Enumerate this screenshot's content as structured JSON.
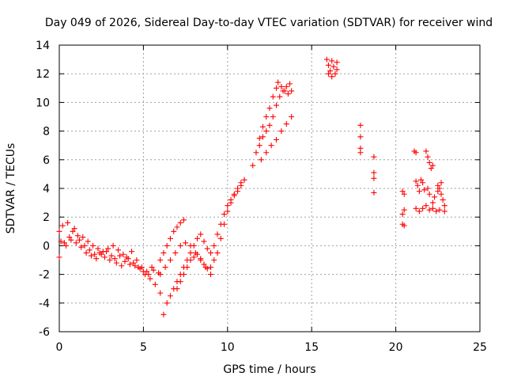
{
  "chart_data": {
    "type": "scatter",
    "title": "Day 049 of 2026, Sidereal Day-to-day VTEC variation (SDTVAR) for receiver wind",
    "xlabel": "GPS time / hours",
    "ylabel": "SDTVAR / TECUs",
    "xlim": [
      0,
      25
    ],
    "ylim": [
      -6,
      14
    ],
    "xticks": [
      0,
      5,
      10,
      15,
      20,
      25
    ],
    "yticks": [
      -6,
      -4,
      -2,
      0,
      2,
      4,
      6,
      8,
      10,
      12,
      14
    ],
    "grid": true,
    "marker": "+",
    "color": "#ff0000",
    "series": [
      {
        "name": "track-a",
        "points": [
          [
            0.0,
            -0.8
          ],
          [
            0.3,
            0.2
          ],
          [
            0.6,
            0.6
          ],
          [
            0.9,
            1.2
          ],
          [
            1.2,
            0.4
          ],
          [
            1.5,
            0.0
          ],
          [
            1.8,
            -0.3
          ],
          [
            2.1,
            -0.6
          ],
          [
            2.4,
            -0.5
          ],
          [
            2.7,
            -0.8
          ],
          [
            3.0,
            -1.0
          ],
          [
            3.3,
            -0.9
          ],
          [
            3.6,
            -0.7
          ],
          [
            3.9,
            -1.1
          ],
          [
            4.2,
            -1.3
          ],
          [
            4.5,
            -1.4
          ],
          [
            4.8,
            -1.6
          ],
          [
            5.1,
            -2.0
          ],
          [
            5.4,
            -2.3
          ],
          [
            5.7,
            -2.7
          ],
          [
            6.0,
            -3.3
          ]
        ]
      },
      {
        "name": "track-b",
        "points": [
          [
            0.0,
            1.0
          ],
          [
            0.2,
            1.4
          ],
          [
            0.5,
            1.6
          ],
          [
            0.8,
            1.0
          ],
          [
            1.1,
            0.7
          ],
          [
            1.4,
            0.6
          ],
          [
            1.7,
            0.3
          ],
          [
            2.0,
            0.0
          ],
          [
            2.3,
            -0.2
          ],
          [
            2.6,
            -0.4
          ],
          [
            2.9,
            -0.2
          ],
          [
            3.2,
            0.0
          ],
          [
            3.5,
            -0.3
          ],
          [
            3.8,
            -0.6
          ],
          [
            4.1,
            -0.9
          ],
          [
            4.4,
            -1.2
          ],
          [
            4.7,
            -1.5
          ],
          [
            5.0,
            -1.8
          ],
          [
            5.3,
            -2.0
          ],
          [
            5.6,
            -1.7
          ],
          [
            5.9,
            -1.9
          ]
        ]
      },
      {
        "name": "track-c",
        "points": [
          [
            0.1,
            0.3
          ],
          [
            0.4,
            0.0
          ],
          [
            0.7,
            0.4
          ],
          [
            1.0,
            0.2
          ],
          [
            1.3,
            -0.1
          ],
          [
            1.6,
            -0.5
          ],
          [
            1.9,
            -0.7
          ],
          [
            2.2,
            -0.9
          ],
          [
            2.5,
            -0.6
          ],
          [
            2.8,
            -0.4
          ],
          [
            3.1,
            -0.7
          ],
          [
            3.4,
            -1.2
          ],
          [
            3.7,
            -1.4
          ],
          [
            4.0,
            -0.8
          ],
          [
            4.3,
            -0.4
          ],
          [
            4.6,
            -1.0
          ],
          [
            4.9,
            -1.5
          ],
          [
            5.2,
            -1.8
          ],
          [
            5.5,
            -1.5
          ]
        ]
      },
      {
        "name": "track-d",
        "points": [
          [
            6.0,
            -2.0
          ],
          [
            6.3,
            -1.5
          ],
          [
            6.6,
            -1.0
          ],
          [
            6.9,
            -0.5
          ],
          [
            7.2,
            0.0
          ],
          [
            7.5,
            0.2
          ],
          [
            7.8,
            0.0
          ],
          [
            8.1,
            -0.5
          ],
          [
            8.4,
            -1.0
          ],
          [
            8.7,
            -1.5
          ],
          [
            9.0,
            -2.0
          ]
        ]
      },
      {
        "name": "track-e",
        "points": [
          [
            6.2,
            -4.8
          ],
          [
            6.4,
            -4.0
          ],
          [
            6.6,
            -3.5
          ],
          [
            6.8,
            -3.0
          ],
          [
            7.0,
            -2.5
          ],
          [
            7.2,
            -2.0
          ],
          [
            7.4,
            -1.5
          ],
          [
            7.6,
            -1.0
          ],
          [
            7.8,
            -0.5
          ],
          [
            8.0,
            0.0
          ],
          [
            8.2,
            0.5
          ],
          [
            8.4,
            0.8
          ],
          [
            8.6,
            0.3
          ],
          [
            8.8,
            -0.2
          ],
          [
            9.0,
            -0.5
          ],
          [
            9.2,
            0.0
          ],
          [
            9.4,
            0.8
          ],
          [
            9.6,
            1.5
          ],
          [
            9.8,
            2.2
          ],
          [
            10.0,
            2.8
          ],
          [
            10.2,
            3.2
          ],
          [
            10.4,
            3.5
          ],
          [
            10.6,
            3.8
          ],
          [
            10.8,
            4.2
          ],
          [
            11.0,
            4.6
          ]
        ]
      },
      {
        "name": "track-f",
        "points": [
          [
            6.0,
            -1.0
          ],
          [
            6.2,
            -0.5
          ],
          [
            6.4,
            0.0
          ],
          [
            6.6,
            0.5
          ],
          [
            6.8,
            1.0
          ],
          [
            7.0,
            1.3
          ],
          [
            7.2,
            1.6
          ],
          [
            7.4,
            1.8
          ]
        ]
      },
      {
        "name": "track-g",
        "points": [
          [
            7.0,
            -3.0
          ],
          [
            7.2,
            -2.5
          ],
          [
            7.4,
            -2.0
          ],
          [
            7.6,
            -1.5
          ],
          [
            7.8,
            -1.0
          ],
          [
            8.0,
            -0.8
          ],
          [
            8.2,
            -0.6
          ],
          [
            8.4,
            -0.9
          ],
          [
            8.6,
            -1.3
          ],
          [
            8.8,
            -1.6
          ],
          [
            9.0,
            -1.5
          ],
          [
            9.2,
            -1.0
          ],
          [
            9.4,
            -0.5
          ],
          [
            9.6,
            0.5
          ],
          [
            9.8,
            1.5
          ],
          [
            10.0,
            2.4
          ],
          [
            10.2,
            3.0
          ],
          [
            10.4,
            3.6
          ],
          [
            10.6,
            4.0
          ],
          [
            10.8,
            4.4
          ]
        ]
      },
      {
        "name": "track-h",
        "points": [
          [
            11.5,
            5.6
          ],
          [
            11.7,
            6.5
          ],
          [
            11.9,
            7.0
          ],
          [
            12.1,
            7.6
          ],
          [
            12.3,
            8.0
          ],
          [
            12.5,
            8.4
          ],
          [
            12.7,
            9.0
          ],
          [
            12.9,
            9.8
          ],
          [
            13.1,
            10.4
          ],
          [
            13.3,
            10.8
          ],
          [
            13.5,
            11.1
          ],
          [
            13.7,
            11.3
          ]
        ]
      },
      {
        "name": "track-i",
        "points": [
          [
            11.9,
            7.5
          ],
          [
            12.1,
            8.3
          ],
          [
            12.3,
            9.0
          ],
          [
            12.5,
            9.6
          ],
          [
            12.7,
            10.4
          ],
          [
            12.9,
            11.0
          ],
          [
            13.0,
            11.4
          ],
          [
            13.2,
            11.1
          ],
          [
            13.4,
            10.8
          ],
          [
            13.6,
            10.6
          ],
          [
            13.8,
            10.8
          ]
        ]
      },
      {
        "name": "track-j",
        "points": [
          [
            12.0,
            6.0
          ],
          [
            12.3,
            6.5
          ],
          [
            12.6,
            7.0
          ],
          [
            12.9,
            7.4
          ],
          [
            13.2,
            8.0
          ],
          [
            13.5,
            8.5
          ],
          [
            13.8,
            9.0
          ]
        ]
      },
      {
        "name": "cluster-16h",
        "points": [
          [
            15.9,
            13.0
          ],
          [
            16.0,
            12.6
          ],
          [
            16.1,
            12.2
          ],
          [
            16.2,
            12.9
          ],
          [
            16.3,
            12.5
          ],
          [
            16.4,
            12.0
          ],
          [
            16.5,
            12.8
          ],
          [
            16.5,
            12.3
          ],
          [
            16.0,
            12.0
          ],
          [
            16.2,
            11.8
          ]
        ]
      },
      {
        "name": "isolated",
        "points": [
          [
            17.9,
            8.4
          ],
          [
            17.9,
            7.6
          ],
          [
            17.9,
            6.8
          ],
          [
            17.9,
            6.5
          ],
          [
            18.7,
            6.2
          ],
          [
            18.7,
            5.1
          ],
          [
            18.7,
            4.7
          ],
          [
            18.7,
            3.7
          ]
        ]
      },
      {
        "name": "cluster-20-23h",
        "points": [
          [
            20.4,
            3.8
          ],
          [
            20.5,
            3.6
          ],
          [
            20.5,
            2.5
          ],
          [
            20.4,
            2.2
          ],
          [
            20.4,
            1.5
          ],
          [
            20.5,
            1.4
          ],
          [
            21.1,
            6.6
          ],
          [
            21.2,
            6.5
          ],
          [
            21.2,
            4.5
          ],
          [
            21.3,
            4.2
          ],
          [
            21.4,
            3.8
          ],
          [
            21.5,
            4.6
          ],
          [
            21.6,
            4.4
          ],
          [
            21.7,
            3.9
          ],
          [
            21.8,
            6.6
          ],
          [
            21.9,
            6.2
          ],
          [
            22.0,
            5.8
          ],
          [
            22.1,
            5.4
          ],
          [
            22.2,
            5.6
          ],
          [
            21.9,
            4.0
          ],
          [
            22.0,
            3.6
          ],
          [
            22.2,
            3.0
          ],
          [
            21.2,
            2.6
          ],
          [
            21.4,
            2.4
          ],
          [
            21.6,
            2.6
          ],
          [
            21.8,
            2.8
          ],
          [
            22.0,
            2.5
          ],
          [
            22.2,
            2.6
          ],
          [
            22.4,
            2.4
          ],
          [
            22.6,
            2.5
          ],
          [
            22.5,
            4.2
          ],
          [
            22.6,
            4.0
          ],
          [
            22.7,
            3.6
          ],
          [
            22.8,
            3.2
          ],
          [
            22.9,
            2.8
          ],
          [
            22.9,
            2.4
          ],
          [
            22.7,
            4.4
          ],
          [
            22.5,
            3.8
          ],
          [
            22.3,
            3.4
          ]
        ]
      }
    ]
  }
}
